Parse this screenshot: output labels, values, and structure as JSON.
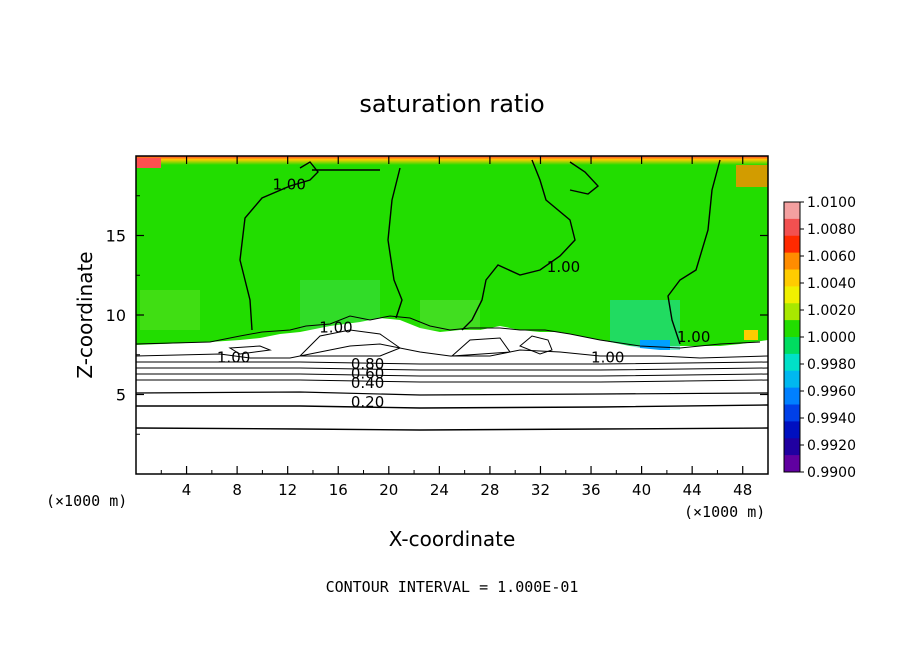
{
  "chart_data": {
    "type": "heatmap",
    "title": "saturation ratio",
    "xlabel": "X-coordinate",
    "ylabel": "Z-coordinate",
    "x_unit_left": "(×1000 m)",
    "x_unit_right": "(×1000 m)",
    "xlim": [
      0,
      50
    ],
    "ylim": [
      0,
      20
    ],
    "xticks": [
      "4",
      "8",
      "12",
      "16",
      "20",
      "24",
      "28",
      "32",
      "36",
      "40",
      "44",
      "48"
    ],
    "yticks": [
      "5",
      "10",
      "15"
    ],
    "xtick_values": [
      4,
      8,
      12,
      16,
      20,
      24,
      28,
      32,
      36,
      40,
      44,
      48
    ],
    "ytick_values": [
      5,
      10,
      15
    ],
    "footer": "CONTOUR INTERVAL = 1.000E-01",
    "colorbar": {
      "labels": [
        "1.0100",
        "1.0080",
        "1.0060",
        "1.0040",
        "1.0020",
        "1.0000",
        "0.9980",
        "0.9960",
        "0.9940",
        "0.9920",
        "0.9900"
      ],
      "colors": [
        "#f4a0a0",
        "#f25050",
        "#ff2a00",
        "#ff8c00",
        "#ffcc00",
        "#f0f000",
        "#a8e800",
        "#22dd00",
        "#00dd60",
        "#00e0c8",
        "#00b8f0",
        "#0080ff",
        "#0040e8",
        "#0010c0",
        "#2000a0",
        "#6000a0"
      ]
    },
    "contour_labels": [
      {
        "text": "1.00",
        "x": 10.8,
        "z": 17.9
      },
      {
        "text": "1.00",
        "x": 32.5,
        "z": 12.7
      },
      {
        "text": "1.00",
        "x": 42.8,
        "z": 8.3
      },
      {
        "text": "1.00",
        "x": 14.5,
        "z": 8.9
      },
      {
        "text": "1.00",
        "x": 6.4,
        "z": 7.0
      },
      {
        "text": "1.00",
        "x": 36.0,
        "z": 7.0
      },
      {
        "text": "0.80",
        "x": 17.0,
        "z": 6.6
      },
      {
        "text": "0.60",
        "x": 17.0,
        "z": 6.0
      },
      {
        "text": "0.40",
        "x": 17.0,
        "z": 5.4
      },
      {
        "text": "0.20",
        "x": 17.0,
        "z": 4.2
      }
    ],
    "contour_levels_below": [
      0.2,
      0.4,
      0.6,
      0.8
    ]
  }
}
